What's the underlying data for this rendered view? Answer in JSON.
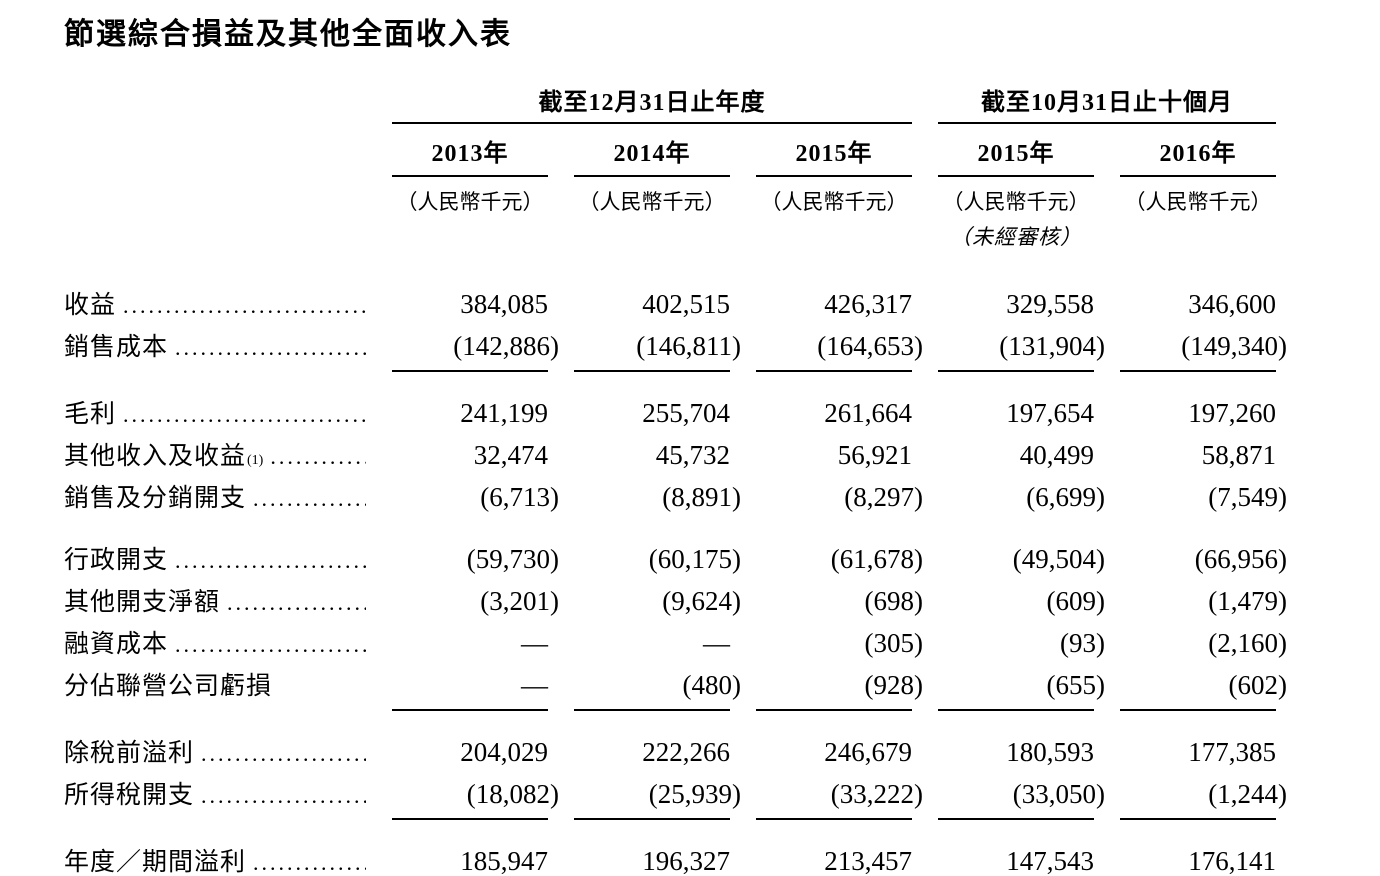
{
  "page": {
    "title": "節選綜合損益及其他全面收入表"
  },
  "table": {
    "column_groups": [
      {
        "label": "截至12月31日止年度",
        "span": 3
      },
      {
        "label": "截至10月31日止十個月",
        "span": 2
      }
    ],
    "columns": [
      {
        "year": "2013年",
        "unit": "（人民幣千元）",
        "note": ""
      },
      {
        "year": "2014年",
        "unit": "（人民幣千元）",
        "note": ""
      },
      {
        "year": "2015年",
        "unit": "（人民幣千元）",
        "note": ""
      },
      {
        "year": "2015年",
        "unit": "（人民幣千元）",
        "note": "（未經審核）"
      },
      {
        "year": "2016年",
        "unit": "（人民幣千元）",
        "note": ""
      }
    ],
    "rows": [
      {
        "label": "收益",
        "leader": true,
        "values": [
          "384,085",
          "402,515",
          "426,317",
          "329,558",
          "346,600"
        ],
        "rule_after": "none",
        "gap_before": false
      },
      {
        "label": "銷售成本",
        "leader": true,
        "values": [
          "(142,886)",
          "(146,811)",
          "(164,653)",
          "(131,904)",
          "(149,340)"
        ],
        "rule_after": "single",
        "gap_before": false
      },
      {
        "label": "毛利",
        "leader": true,
        "values": [
          "241,199",
          "255,704",
          "261,664",
          "197,654",
          "197,260"
        ],
        "rule_after": "none",
        "gap_before": true
      },
      {
        "label": "其他收入及收益",
        "sup": "(1)",
        "leader": true,
        "values": [
          "32,474",
          "45,732",
          "56,921",
          "40,499",
          "58,871"
        ],
        "rule_after": "none",
        "gap_before": false
      },
      {
        "label": "銷售及分銷開支",
        "leader": true,
        "values": [
          "(6,713)",
          "(8,891)",
          "(8,297)",
          "(6,699)",
          "(7,549)"
        ],
        "rule_after": "none",
        "gap_before": false
      },
      {
        "label": "行政開支",
        "leader": true,
        "values": [
          "(59,730)",
          "(60,175)",
          "(61,678)",
          "(49,504)",
          "(66,956)"
        ],
        "rule_after": "none",
        "gap_before": true
      },
      {
        "label": "其他開支淨額",
        "leader": true,
        "values": [
          "(3,201)",
          "(9,624)",
          "(698)",
          "(609)",
          "(1,479)"
        ],
        "rule_after": "none",
        "gap_before": false
      },
      {
        "label": "融資成本",
        "leader": true,
        "values": [
          "—",
          "—",
          "(305)",
          "(93)",
          "(2,160)"
        ],
        "rule_after": "none",
        "gap_before": false
      },
      {
        "label": "分佔聯營公司虧損",
        "leader": false,
        "values": [
          "—",
          "(480)",
          "(928)",
          "(655)",
          "(602)"
        ],
        "rule_after": "single",
        "gap_before": false
      },
      {
        "label": "除稅前溢利",
        "leader": true,
        "values": [
          "204,029",
          "222,266",
          "246,679",
          "180,593",
          "177,385"
        ],
        "rule_after": "none",
        "gap_before": true
      },
      {
        "label": "所得稅開支",
        "leader": true,
        "values": [
          "(18,082)",
          "(25,939)",
          "(33,222)",
          "(33,050)",
          "(1,244)"
        ],
        "rule_after": "single",
        "gap_before": false
      },
      {
        "label": "年度／期間溢利",
        "leader": true,
        "values": [
          "185,947",
          "196,327",
          "213,457",
          "147,543",
          "176,141"
        ],
        "rule_after": "double",
        "gap_before": true
      }
    ]
  }
}
